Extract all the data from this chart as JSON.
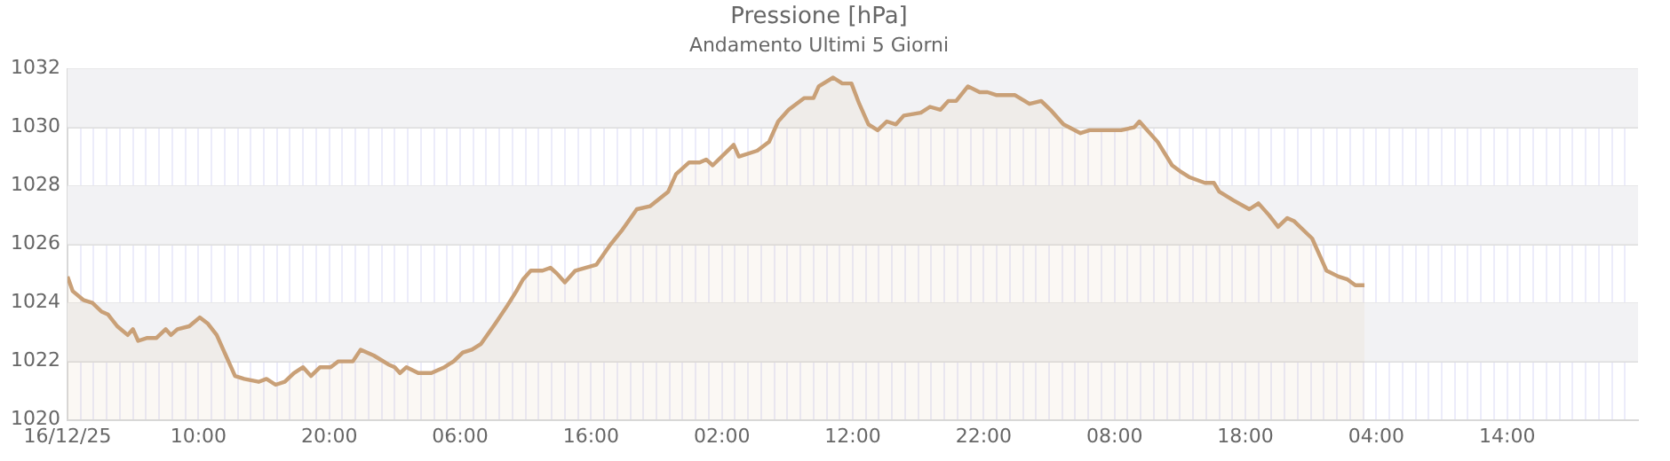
{
  "chart_data": {
    "type": "area",
    "title": "Pressione [hPa]",
    "subtitle": "Andamento Ultimi 5 Giorni",
    "x": [
      "--12-16T00:00",
      "--12-16T00:24",
      "--12-16T01:12",
      "--12-16T01:54",
      "--12-16T02:36",
      "--12-16T03:06",
      "--12-16T03:48",
      "--12-16T04:36",
      "--12-16T05:00",
      "--12-16T05:24",
      "--12-16T06:06",
      "--12-16T06:48",
      "--12-16T07:30",
      "--12-16T07:54",
      "--12-16T08:24",
      "--12-16T09:18",
      "--12-16T10:06",
      "--12-16T10:42",
      "--12-16T11:24",
      "--12-16T12:06",
      "--12-16T12:48",
      "--12-16T13:30",
      "--12-16T14:36",
      "--12-16T15:12",
      "--12-16T15:54",
      "--12-16T16:36",
      "--12-16T17:18",
      "--12-16T18:00",
      "--12-16T18:36",
      "--12-16T19:18",
      "--12-16T20:06",
      "--12-16T20:42",
      "--12-16T21:48",
      "--12-16T22:24",
      "--12-16T23:24",
      "--12-17T00:30",
      "--12-17T01:00",
      "--12-17T01:24",
      "--12-17T01:54",
      "--12-17T02:48",
      "--12-17T03:48",
      "--12-17T04:48",
      "--12-17T05:30",
      "--12-17T06:12",
      "--12-17T06:54",
      "--12-17T07:36",
      "--12-17T08:42",
      "--12-17T09:36",
      "--12-17T10:18",
      "--12-17T10:48",
      "--12-17T11:24",
      "--12-17T12:18",
      "--12-17T12:54",
      "--12-17T13:24",
      "--12-17T14:00",
      "--12-17T14:48",
      "--12-17T16:24",
      "--12-17T17:30",
      "--12-17T18:24",
      "--12-17T19:30",
      "--12-17T20:30",
      "--12-17T21:54",
      "--12-17T22:30",
      "--12-17T23:30",
      "--12-18T00:18",
      "--12-18T00:48",
      "--12-18T01:18",
      "--12-18T02:54",
      "--12-18T03:18",
      "--12-18T04:42",
      "--12-18T05:36",
      "--12-18T06:18",
      "--12-18T07:06",
      "--12-18T08:18",
      "--12-18T09:00",
      "--12-18T09:24",
      "--12-18T10:30",
      "--12-18T11:12",
      "--12-18T11:54",
      "--12-18T12:30",
      "--12-18T13:12",
      "--12-18T13:54",
      "--12-18T14:36",
      "--12-18T15:18",
      "--12-18T15:54",
      "--12-18T17:12",
      "--12-18T17:54",
      "--12-18T18:42",
      "--12-18T19:18",
      "--12-18T19:54",
      "--12-18T20:48",
      "--12-18T21:42",
      "--12-18T22:18",
      "--12-18T23:00",
      "--12-19T00:24",
      "--12-19T01:30",
      "--12-19T02:24",
      "--12-19T03:06",
      "--12-19T04:06",
      "--12-19T05:24",
      "--12-19T06:06",
      "--12-19T08:30",
      "--12-19T09:30",
      "--12-19T09:54",
      "--12-19T11:18",
      "--12-19T12:24",
      "--12-19T13:00",
      "--12-19T13:42",
      "--12-19T14:54",
      "--12-19T15:36",
      "--12-19T16:00",
      "--12-19T17:06",
      "--12-19T18:18",
      "--12-19T19:00",
      "--12-19T19:48",
      "--12-19T20:30",
      "--12-19T21:12",
      "--12-19T21:42",
      "--12-19T23:06",
      "--12-20T00:12",
      "--12-20T01:06",
      "--12-20T01:48",
      "--12-20T02:24",
      "--12-20T03:06"
    ],
    "series": [
      {
        "color": "#c9a077",
        "values": [
          1024.9,
          1024.4,
          1024.1,
          1024.0,
          1023.7,
          1023.6,
          1023.2,
          1022.9,
          1023.1,
          1022.7,
          1022.8,
          1022.8,
          1023.1,
          1022.9,
          1023.1,
          1023.2,
          1023.5,
          1023.3,
          1022.9,
          1022.2,
          1021.5,
          1021.4,
          1021.3,
          1021.4,
          1021.2,
          1021.3,
          1021.6,
          1021.8,
          1021.5,
          1021.8,
          1021.8,
          1022.0,
          1022.0,
          1022.4,
          1022.2,
          1021.9,
          1021.8,
          1021.6,
          1021.8,
          1021.6,
          1021.6,
          1021.8,
          1022.0,
          1022.3,
          1022.4,
          1022.6,
          1023.3,
          1023.9,
          1024.4,
          1024.8,
          1025.1,
          1025.1,
          1025.2,
          1025.0,
          1024.7,
          1025.1,
          1025.3,
          1026.0,
          1026.5,
          1027.2,
          1027.3,
          1027.8,
          1028.4,
          1028.8,
          1028.8,
          1028.9,
          1028.7,
          1029.4,
          1029.0,
          1029.2,
          1029.5,
          1030.2,
          1030.6,
          1031.0,
          1031.0,
          1031.4,
          1031.7,
          1031.5,
          1031.5,
          1030.8,
          1030.1,
          1029.9,
          1030.2,
          1030.1,
          1030.4,
          1030.5,
          1030.7,
          1030.6,
          1030.9,
          1030.9,
          1031.4,
          1031.2,
          1031.2,
          1031.1,
          1031.1,
          1030.8,
          1030.9,
          1030.6,
          1030.1,
          1029.8,
          1029.9,
          1029.9,
          1030.0,
          1030.2,
          1029.5,
          1028.7,
          1028.5,
          1028.3,
          1028.1,
          1028.1,
          1027.8,
          1027.5,
          1027.2,
          1027.4,
          1027.0,
          1026.6,
          1026.9,
          1026.8,
          1026.2,
          1025.1,
          1024.9,
          1024.8,
          1024.6,
          1024.6
        ]
      }
    ],
    "xlim": [
      "--12-16T00:00",
      "--12-21T00:00"
    ],
    "xticks": [
      {
        "value": "--12-16T00:00",
        "label": "16/12/25"
      },
      {
        "value": "--12-16T01:00",
        "label": null
      },
      {
        "value": "--12-16T02:00",
        "label": null
      },
      {
        "value": "--12-16T03:00",
        "label": null
      },
      {
        "value": "--12-16T04:00",
        "label": null
      },
      {
        "value": "--12-16T05:00",
        "label": null
      },
      {
        "value": "--12-16T06:00",
        "label": null
      },
      {
        "value": "--12-16T07:00",
        "label": null
      },
      {
        "value": "--12-16T08:00",
        "label": null
      },
      {
        "value": "--12-16T09:00",
        "label": null
      },
      {
        "value": "--12-16T10:00",
        "label": "10:00"
      },
      {
        "value": "--12-16T11:00",
        "label": null
      },
      {
        "value": "--12-16T12:00",
        "label": null
      },
      {
        "value": "--12-16T13:00",
        "label": null
      },
      {
        "value": "--12-16T14:00",
        "label": null
      },
      {
        "value": "--12-16T15:00",
        "label": null
      },
      {
        "value": "--12-16T16:00",
        "label": null
      },
      {
        "value": "--12-16T17:00",
        "label": null
      },
      {
        "value": "--12-16T18:00",
        "label": null
      },
      {
        "value": "--12-16T19:00",
        "label": null
      },
      {
        "value": "--12-16T20:00",
        "label": "20:00"
      },
      {
        "value": "--12-16T21:00",
        "label": null
      },
      {
        "value": "--12-16T22:00",
        "label": null
      },
      {
        "value": "--12-16T23:00",
        "label": null
      },
      {
        "value": "--12-17T00:00",
        "label": null
      },
      {
        "value": "--12-17T01:00",
        "label": null
      },
      {
        "value": "--12-17T02:00",
        "label": null
      },
      {
        "value": "--12-17T03:00",
        "label": null
      },
      {
        "value": "--12-17T04:00",
        "label": null
      },
      {
        "value": "--12-17T05:00",
        "label": null
      },
      {
        "value": "--12-17T06:00",
        "label": "06:00"
      },
      {
        "value": "--12-17T07:00",
        "label": null
      },
      {
        "value": "--12-17T08:00",
        "label": null
      },
      {
        "value": "--12-17T09:00",
        "label": null
      },
      {
        "value": "--12-17T10:00",
        "label": null
      },
      {
        "value": "--12-17T11:00",
        "label": null
      },
      {
        "value": "--12-17T12:00",
        "label": null
      },
      {
        "value": "--12-17T13:00",
        "label": null
      },
      {
        "value": "--12-17T14:00",
        "label": null
      },
      {
        "value": "--12-17T15:00",
        "label": null
      },
      {
        "value": "--12-17T16:00",
        "label": "16:00"
      },
      {
        "value": "--12-17T17:00",
        "label": null
      },
      {
        "value": "--12-17T18:00",
        "label": null
      },
      {
        "value": "--12-17T19:00",
        "label": null
      },
      {
        "value": "--12-17T20:00",
        "label": null
      },
      {
        "value": "--12-17T21:00",
        "label": null
      },
      {
        "value": "--12-17T22:00",
        "label": null
      },
      {
        "value": "--12-17T23:00",
        "label": null
      },
      {
        "value": "--12-18T00:00",
        "label": null
      },
      {
        "value": "--12-18T01:00",
        "label": null
      },
      {
        "value": "--12-18T02:00",
        "label": "02:00"
      },
      {
        "value": "--12-18T03:00",
        "label": null
      },
      {
        "value": "--12-18T04:00",
        "label": null
      },
      {
        "value": "--12-18T05:00",
        "label": null
      },
      {
        "value": "--12-18T06:00",
        "label": null
      },
      {
        "value": "--12-18T07:00",
        "label": null
      },
      {
        "value": "--12-18T08:00",
        "label": null
      },
      {
        "value": "--12-18T09:00",
        "label": null
      },
      {
        "value": "--12-18T10:00",
        "label": null
      },
      {
        "value": "--12-18T11:00",
        "label": null
      },
      {
        "value": "--12-18T12:00",
        "label": "12:00"
      },
      {
        "value": "--12-18T13:00",
        "label": null
      },
      {
        "value": "--12-18T14:00",
        "label": null
      },
      {
        "value": "--12-18T15:00",
        "label": null
      },
      {
        "value": "--12-18T16:00",
        "label": null
      },
      {
        "value": "--12-18T17:00",
        "label": null
      },
      {
        "value": "--12-18T18:00",
        "label": null
      },
      {
        "value": "--12-18T19:00",
        "label": null
      },
      {
        "value": "--12-18T20:00",
        "label": null
      },
      {
        "value": "--12-18T21:00",
        "label": null
      },
      {
        "value": "--12-18T22:00",
        "label": "22:00"
      },
      {
        "value": "--12-18T23:00",
        "label": null
      },
      {
        "value": "--12-19T00:00",
        "label": null
      },
      {
        "value": "--12-19T01:00",
        "label": null
      },
      {
        "value": "--12-19T02:00",
        "label": null
      },
      {
        "value": "--12-19T03:00",
        "label": null
      },
      {
        "value": "--12-19T04:00",
        "label": null
      },
      {
        "value": "--12-19T05:00",
        "label": null
      },
      {
        "value": "--12-19T06:00",
        "label": null
      },
      {
        "value": "--12-19T07:00",
        "label": null
      },
      {
        "value": "--12-19T08:00",
        "label": "08:00"
      },
      {
        "value": "--12-19T09:00",
        "label": null
      },
      {
        "value": "--12-19T10:00",
        "label": null
      },
      {
        "value": "--12-19T11:00",
        "label": null
      },
      {
        "value": "--12-19T12:00",
        "label": null
      },
      {
        "value": "--12-19T13:00",
        "label": null
      },
      {
        "value": "--12-19T14:00",
        "label": null
      },
      {
        "value": "--12-19T15:00",
        "label": null
      },
      {
        "value": "--12-19T16:00",
        "label": null
      },
      {
        "value": "--12-19T17:00",
        "label": null
      },
      {
        "value": "--12-19T18:00",
        "label": "18:00"
      },
      {
        "value": "--12-19T19:00",
        "label": null
      },
      {
        "value": "--12-19T20:00",
        "label": null
      },
      {
        "value": "--12-19T21:00",
        "label": null
      },
      {
        "value": "--12-19T22:00",
        "label": null
      },
      {
        "value": "--12-19T23:00",
        "label": null
      },
      {
        "value": "--12-20T00:00",
        "label": null
      },
      {
        "value": "--12-20T01:00",
        "label": null
      },
      {
        "value": "--12-20T02:00",
        "label": null
      },
      {
        "value": "--12-20T03:00",
        "label": null
      },
      {
        "value": "--12-20T04:00",
        "label": "04:00"
      },
      {
        "value": "--12-20T05:00",
        "label": null
      },
      {
        "value": "--12-20T06:00",
        "label": null
      },
      {
        "value": "--12-20T07:00",
        "label": null
      },
      {
        "value": "--12-20T08:00",
        "label": null
      },
      {
        "value": "--12-20T09:00",
        "label": null
      },
      {
        "value": "--12-20T10:00",
        "label": null
      },
      {
        "value": "--12-20T11:00",
        "label": null
      },
      {
        "value": "--12-20T12:00",
        "label": null
      },
      {
        "value": "--12-20T13:00",
        "label": null
      },
      {
        "value": "--12-20T14:00",
        "label": "14:00"
      },
      {
        "value": "--12-20T15:00",
        "label": null
      },
      {
        "value": "--12-20T16:00",
        "label": null
      },
      {
        "value": "--12-20T17:00",
        "label": null
      },
      {
        "value": "--12-20T18:00",
        "label": null
      },
      {
        "value": "--12-20T19:00",
        "label": null
      },
      {
        "value": "--12-20T20:00",
        "label": null
      },
      {
        "value": "--12-20T21:00",
        "label": null
      },
      {
        "value": "--12-20T22:00",
        "label": null
      },
      {
        "value": "--12-20T23:00",
        "label": null
      }
    ],
    "ylim": [
      1020,
      1032
    ],
    "yticks": [
      1020,
      1022,
      1024,
      1026,
      1028,
      1030,
      1032
    ],
    "bands": [
      {
        "axis": "y",
        "from": 1022,
        "to": 1024,
        "color": "#f2f2f4"
      },
      {
        "axis": "y",
        "from": 1026,
        "to": 1028,
        "color": "#f2f2f4"
      },
      {
        "axis": "y",
        "from": 1030,
        "to": 1032,
        "color": "#f2f2f4"
      }
    ],
    "grid": true,
    "legend": false,
    "marker": "none",
    "line_style": "solid"
  }
}
